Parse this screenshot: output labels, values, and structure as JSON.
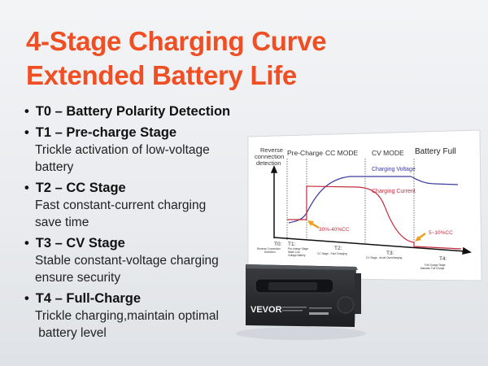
{
  "title": {
    "line1": "4-Stage Charging Curve",
    "line2": "Extended Battery Life"
  },
  "stages": [
    {
      "head": "T0 – Battery Polarity Detection",
      "desc": []
    },
    {
      "head": "T1 – Pre-charge Stage",
      "desc": [
        "Trickle activation of low-voltage",
        "battery"
      ]
    },
    {
      "head": "T2 –  CC Stage",
      "desc": [
        "Fast constant-current charging",
        "save time"
      ]
    },
    {
      "head": "T3 – CV Stage",
      "desc": [
        "Stable constant-voltage  charging",
        "ensure security"
      ]
    },
    {
      "head": "T4 – Full-Charge",
      "desc": [
        "Trickle charging,maintain optimal",
        " battery level"
      ]
    }
  ],
  "diagram": {
    "phase_labels": [
      "Reverse",
      "connection",
      "detection",
      "Pre-Charge",
      "CC MODE",
      "CV MODE",
      "Battery Full"
    ],
    "voltage_label": "Charging Voltage",
    "current_label": "Charging Current",
    "precharge_note": "30%-40%CC",
    "full_note": "5~10%CC",
    "t_labels": [
      "T0:",
      "T1:",
      "T2:",
      "T3:",
      "T4:"
    ],
    "t_desc": [
      "Reverse Connection",
      "Detection",
      "Pre-charge Stage",
      "Wake Low",
      "Voltage Battery",
      "CC Stage - Fast Charging",
      "CV Stage - Avoid Overcharging",
      "Full Charge Stage",
      "Maintain Full Charge"
    ],
    "colors": {
      "voltage": "#3b3a9e",
      "current": "#c62a3c",
      "arrow": "#f0a020",
      "title": "#f04e23"
    }
  },
  "product": {
    "brand": "VEVOR"
  }
}
